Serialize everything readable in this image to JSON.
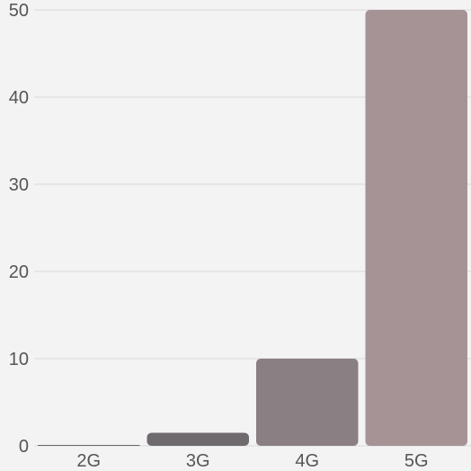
{
  "chart_data": {
    "type": "bar",
    "categories": [
      "2G",
      "3G",
      "4G",
      "5G"
    ],
    "values": [
      0.1,
      1.5,
      10,
      50
    ],
    "title": "",
    "xlabel": "",
    "ylabel": "",
    "ylim": [
      0,
      50
    ],
    "yticks": [
      0,
      10,
      20,
      30,
      40,
      50
    ],
    "grid": "horizontal",
    "legend": "none",
    "colors": [
      "#6b6b6b",
      "#6e6a6e",
      "#8a7f83",
      "#a59395"
    ],
    "background": "#f3f3f3"
  }
}
